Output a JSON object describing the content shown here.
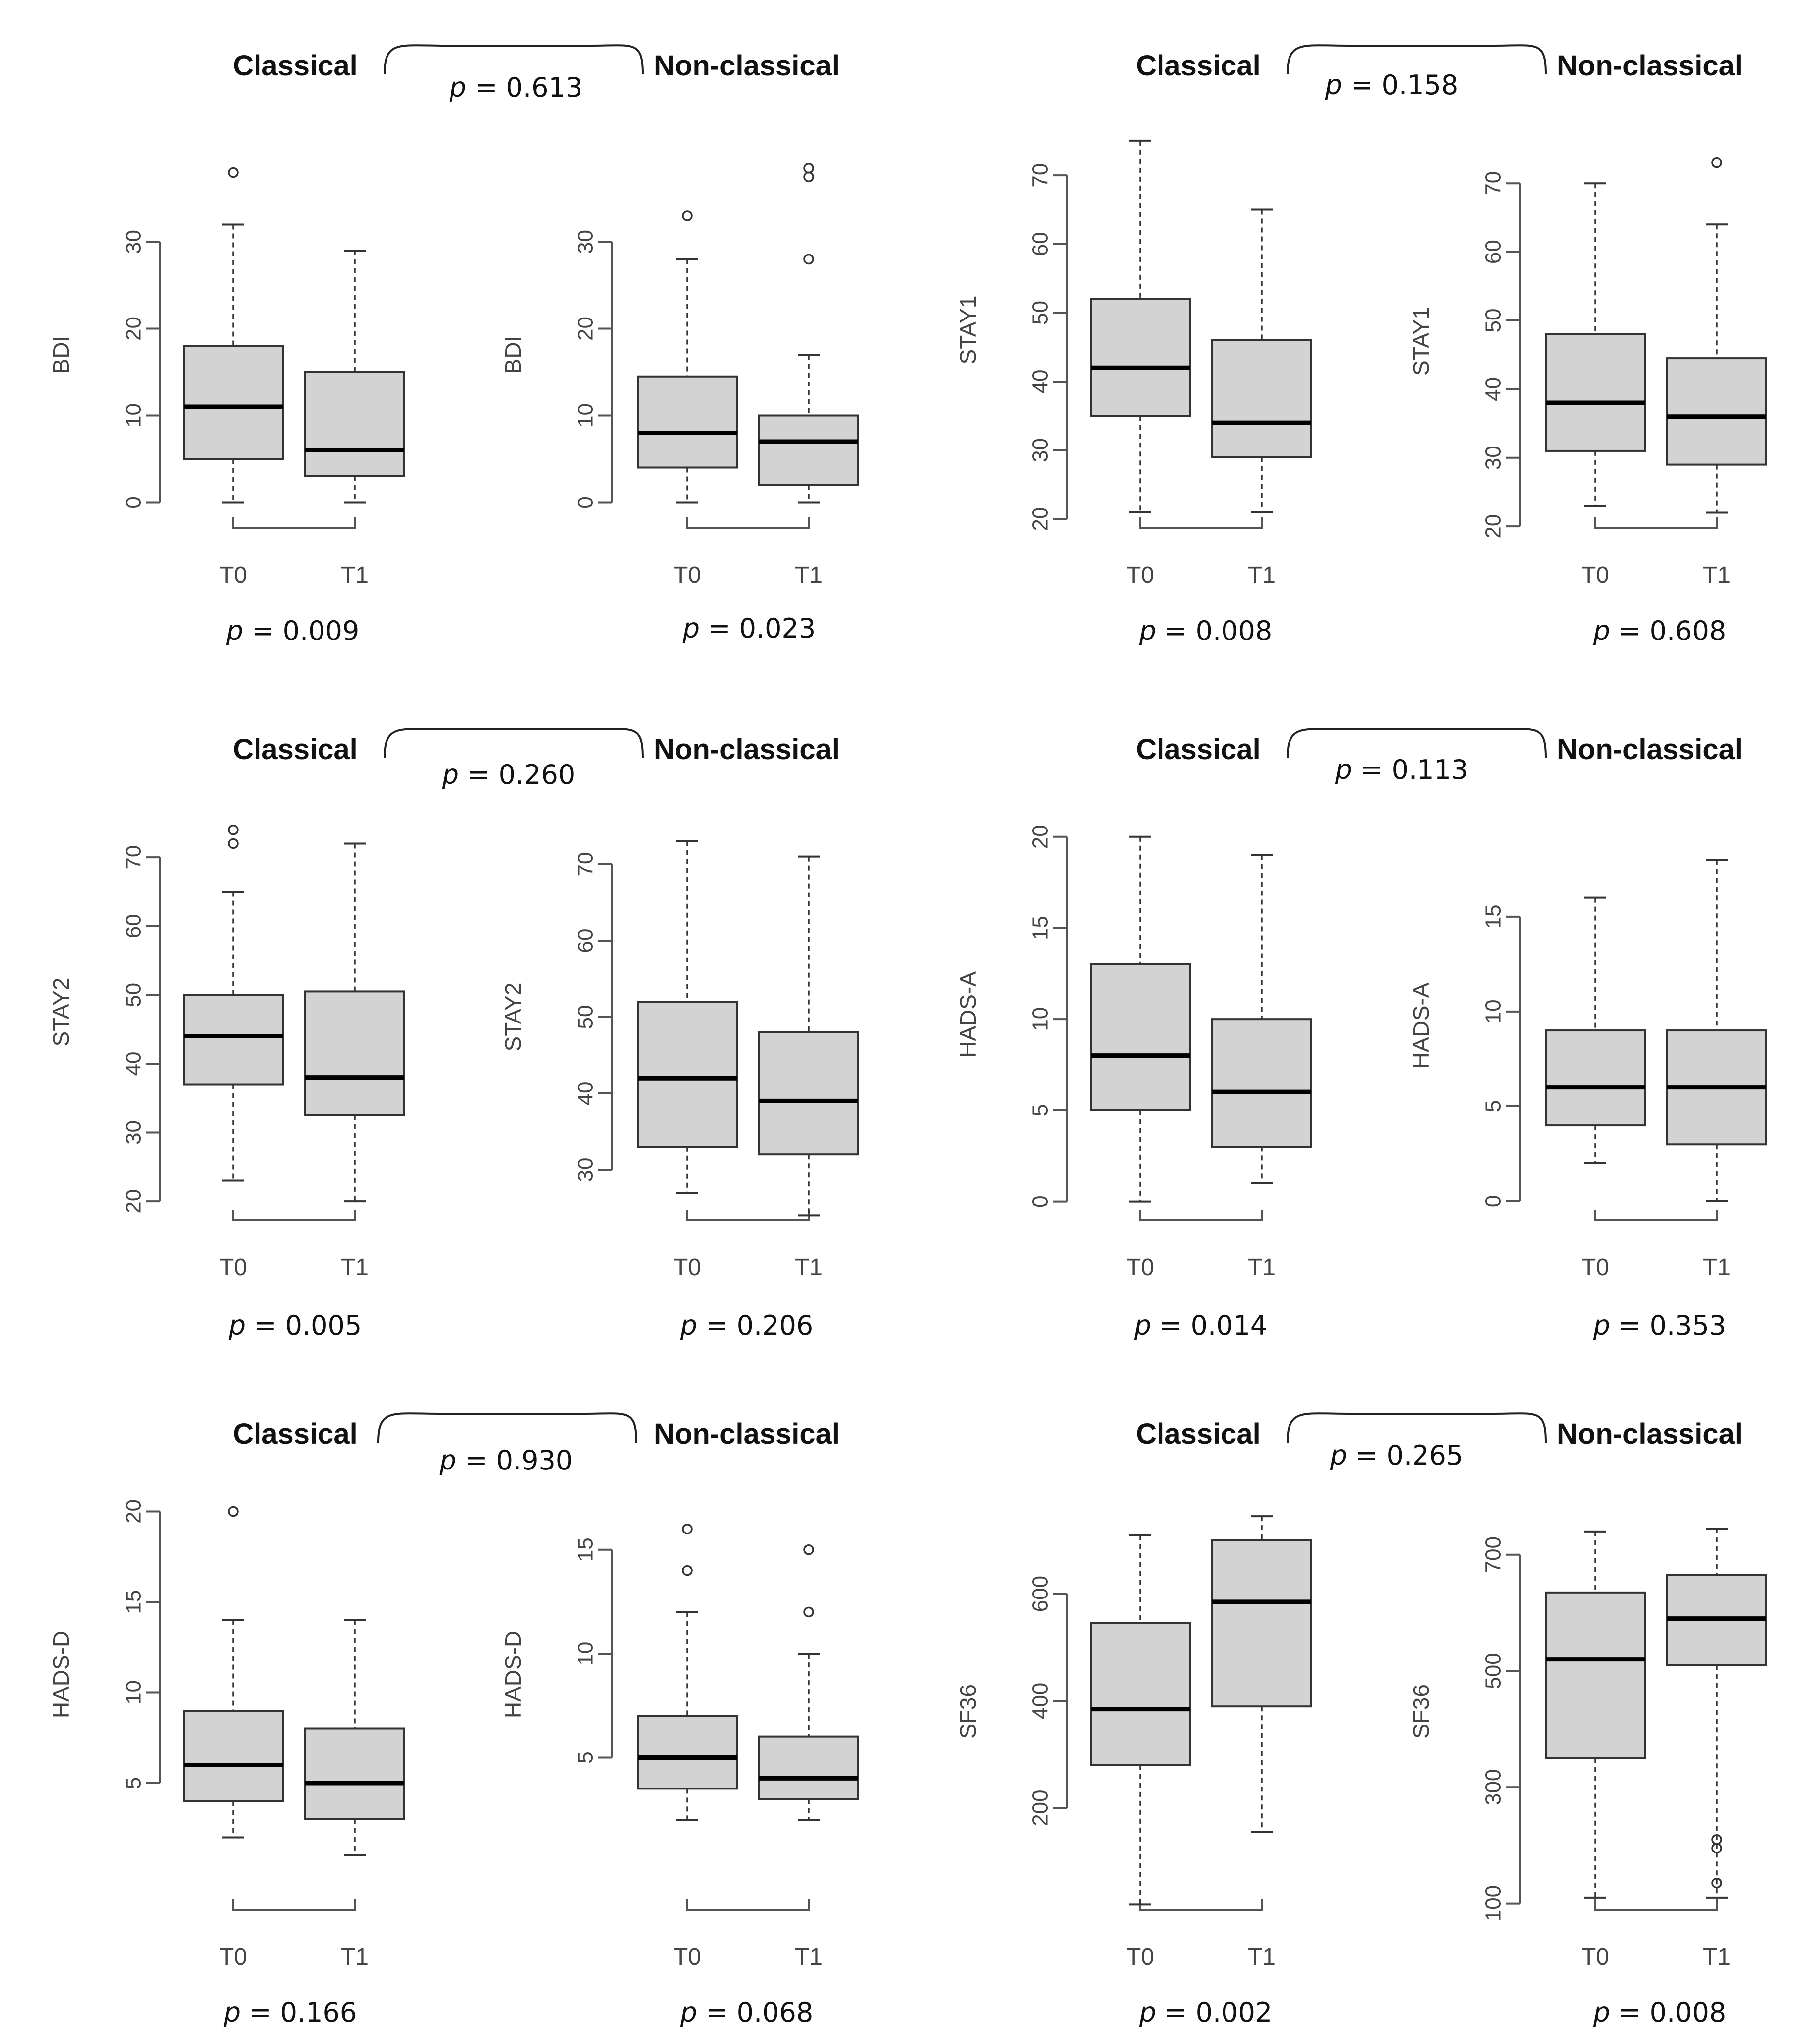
{
  "figure": {
    "title": ""
  },
  "rows": [
    {
      "header": {
        "left": "Classical",
        "right": "Non-classical"
      },
      "between_p_left": "= 0.613",
      "between_p_right": "= 0.158"
    },
    {
      "header": {
        "left": "Classical",
        "right": "Non-classical"
      },
      "between_p_left": "= 0.260",
      "between_p_right": "= 0.113"
    },
    {
      "header": {
        "left": "Classical",
        "right": "Non-classical"
      },
      "between_p_left": "= 0.930",
      "between_p_right": "= 0.265"
    }
  ],
  "p_symbol": "p",
  "chart_data": [
    {
      "type": "boxplot",
      "group": "Classical",
      "ylabel": "BDI",
      "ylim": [
        -1,
        35
      ],
      "yticks": [
        0,
        10,
        20,
        30
      ],
      "categories": [
        "T0",
        "T1"
      ],
      "boxes": [
        {
          "min": 0,
          "q1": 5,
          "median": 11,
          "q3": 18,
          "max": 32,
          "outliers": [
            38
          ]
        },
        {
          "min": 0,
          "q1": 3,
          "median": 6,
          "q3": 15,
          "max": 29,
          "outliers": []
        }
      ],
      "p_within": "= 0.009"
    },
    {
      "type": "boxplot",
      "group": "Non-classical",
      "ylabel": "BDI",
      "ylim": [
        -1,
        35
      ],
      "yticks": [
        0,
        10,
        20,
        30
      ],
      "categories": [
        "T0",
        "T1"
      ],
      "boxes": [
        {
          "min": 0,
          "q1": 4,
          "median": 8,
          "q3": 14.5,
          "max": 28,
          "outliers": [
            33
          ]
        },
        {
          "min": 0,
          "q1": 2,
          "median": 7,
          "q3": 10,
          "max": 17,
          "outliers": [
            28,
            37.5,
            38.5
          ]
        }
      ],
      "p_within": "= 0.023"
    },
    {
      "type": "boxplot",
      "group": "Classical",
      "ylabel": "STAY1",
      "ylim": [
        19,
        76
      ],
      "yticks": [
        20,
        30,
        40,
        50,
        60,
        70
      ],
      "categories": [
        "T0",
        "T1"
      ],
      "boxes": [
        {
          "min": 21,
          "q1": 35,
          "median": 42,
          "q3": 52,
          "max": 75,
          "outliers": []
        },
        {
          "min": 21,
          "q1": 29,
          "median": 34,
          "q3": 46,
          "max": 65,
          "outliers": []
        }
      ],
      "p_within": "= 0.008"
    },
    {
      "type": "boxplot",
      "group": "Non-classical",
      "ylabel": "STAY1",
      "ylim": [
        19,
        75
      ],
      "yticks": [
        20,
        30,
        40,
        50,
        60,
        70
      ],
      "categories": [
        "T0",
        "T1"
      ],
      "boxes": [
        {
          "min": 23,
          "q1": 31,
          "median": 38,
          "q3": 48,
          "max": 70,
          "outliers": []
        },
        {
          "min": 22,
          "q1": 29,
          "median": 36,
          "q3": 44.5,
          "max": 64,
          "outliers": [
            73
          ]
        }
      ],
      "p_within": "= 0.608"
    },
    {
      "type": "boxplot",
      "group": "Classical",
      "ylabel": "STAY2",
      "ylim": [
        19,
        76
      ],
      "yticks": [
        20,
        30,
        40,
        50,
        60,
        70
      ],
      "categories": [
        "T0",
        "T1"
      ],
      "boxes": [
        {
          "min": 23,
          "q1": 37,
          "median": 44,
          "q3": 50,
          "max": 65,
          "outliers": [
            72,
            74
          ]
        },
        {
          "min": 20,
          "q1": 32.5,
          "median": 38,
          "q3": 50.5,
          "max": 72,
          "outliers": []
        }
      ],
      "p_within": "= 0.005"
    },
    {
      "type": "boxplot",
      "group": "Non-classical",
      "ylabel": "STAY2",
      "ylim": [
        25,
        75
      ],
      "yticks": [
        30,
        40,
        50,
        60,
        70
      ],
      "categories": [
        "T0",
        "T1"
      ],
      "boxes": [
        {
          "min": 27,
          "q1": 33,
          "median": 42,
          "q3": 52,
          "max": 73,
          "outliers": []
        },
        {
          "min": 24,
          "q1": 32,
          "median": 39,
          "q3": 48,
          "max": 71,
          "outliers": []
        }
      ],
      "p_within": "= 0.206"
    },
    {
      "type": "boxplot",
      "group": "Classical",
      "ylabel": "HADS-A",
      "ylim": [
        -0.5,
        21
      ],
      "yticks": [
        0,
        5,
        10,
        15,
        20
      ],
      "categories": [
        "T0",
        "T1"
      ],
      "boxes": [
        {
          "min": 0,
          "q1": 5,
          "median": 8,
          "q3": 13,
          "max": 20,
          "outliers": []
        },
        {
          "min": 1,
          "q1": 3,
          "median": 6,
          "q3": 10,
          "max": 19,
          "outliers": []
        }
      ],
      "p_within": "= 0.014"
    },
    {
      "type": "boxplot",
      "group": "Non-classical",
      "ylabel": "HADS-A",
      "ylim": [
        -0.5,
        19
      ],
      "yticks": [
        0,
        5,
        10,
        15
      ],
      "categories": [
        "T0",
        "T1"
      ],
      "boxes": [
        {
          "min": 2,
          "q1": 4,
          "median": 6,
          "q3": 9,
          "max": 16,
          "outliers": []
        },
        {
          "min": 0,
          "q1": 3,
          "median": 6,
          "q3": 9,
          "max": 18,
          "outliers": []
        }
      ],
      "p_within": "= 0.353"
    },
    {
      "type": "boxplot",
      "group": "Classical",
      "ylabel": "HADS-D",
      "ylim": [
        1,
        21
      ],
      "yticks": [
        5,
        10,
        15,
        20
      ],
      "categories": [
        "T0",
        "T1"
      ],
      "boxes": [
        {
          "min": 2,
          "q1": 4,
          "median": 6,
          "q3": 9,
          "max": 14,
          "outliers": [
            20
          ]
        },
        {
          "min": 1,
          "q1": 3,
          "median": 5,
          "q3": 8,
          "max": 14,
          "outliers": []
        }
      ],
      "p_within": "= 0.166"
    },
    {
      "type": "boxplot",
      "group": "Non-classical",
      "ylabel": "HADS-D",
      "ylim": [
        1,
        17
      ],
      "yticks": [
        5,
        10,
        15
      ],
      "categories": [
        "T0",
        "T1"
      ],
      "boxes": [
        {
          "min": 2,
          "q1": 3.5,
          "median": 5,
          "q3": 7,
          "max": 12,
          "outliers": [
            14,
            16
          ]
        },
        {
          "min": 2,
          "q1": 3,
          "median": 4,
          "q3": 6,
          "max": 10,
          "outliers": [
            12,
            15
          ]
        }
      ],
      "p_within": "= 0.068"
    },
    {
      "type": "boxplot",
      "group": "Classical",
      "ylabel": "SF36",
      "ylim": [
        0,
        760
      ],
      "yticks": [
        200,
        400,
        600
      ],
      "categories": [
        "T0",
        "T1"
      ],
      "boxes": [
        {
          "min": 20,
          "q1": 280,
          "median": 385,
          "q3": 545,
          "max": 710,
          "outliers": []
        },
        {
          "min": 155,
          "q1": 390,
          "median": 585,
          "q3": 700,
          "max": 745,
          "outliers": []
        }
      ],
      "p_within": "= 0.002"
    },
    {
      "type": "boxplot",
      "group": "Non-classical",
      "ylabel": "SF36",
      "ylim": [
        80,
        780
      ],
      "yticks": [
        100,
        300,
        500,
        700
      ],
      "categories": [
        "T0",
        "T1"
      ],
      "boxes": [
        {
          "min": 110,
          "q1": 350,
          "median": 520,
          "q3": 635,
          "max": 740,
          "outliers": []
        },
        {
          "min": 110,
          "q1": 510,
          "median": 590,
          "q3": 665,
          "max": 745,
          "outliers": [
            210,
            195,
            135
          ]
        }
      ],
      "p_within": "= 0.008"
    }
  ]
}
